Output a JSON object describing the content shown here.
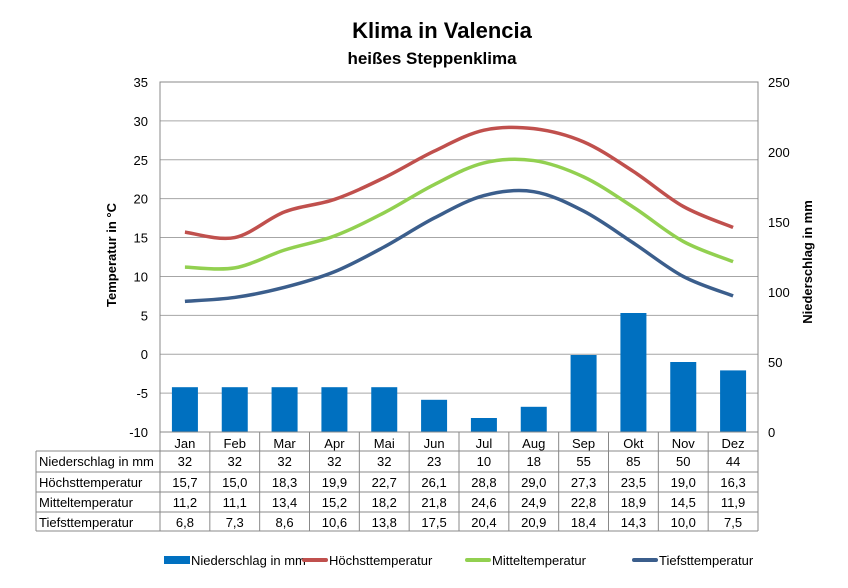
{
  "chart_data": {
    "type": "bar+line",
    "title": "Klima in Valencia",
    "subtitle": "heißes Steppenklima",
    "ylabel_left": "Temperatur in °C",
    "ylabel_right": "Niederschlag in mm",
    "ylim_left": [
      -10,
      35
    ],
    "yticks_left": [
      -10,
      -5,
      0,
      5,
      10,
      15,
      20,
      25,
      30,
      35
    ],
    "ylim_right": [
      0,
      250
    ],
    "yticks_right": [
      0,
      50,
      100,
      150,
      200,
      250
    ],
    "grid": true,
    "legend_placement": "bottom",
    "categories": [
      "Jan",
      "Feb",
      "Mar",
      "Apr",
      "Mai",
      "Jun",
      "Jul",
      "Aug",
      "Sep",
      "Okt",
      "Nov",
      "Dez"
    ],
    "series": [
      {
        "name": "Niederschlag in mm",
        "kind": "bar",
        "axis": "right",
        "color": "#0070C0",
        "values": [
          32,
          32,
          32,
          32,
          32,
          23,
          10,
          18,
          55,
          85,
          50,
          44
        ],
        "labels": [
          "32",
          "32",
          "32",
          "32",
          "32",
          "23",
          "10",
          "18",
          "55",
          "85",
          "50",
          "44"
        ]
      },
      {
        "name": "Höchsttemperatur",
        "kind": "line",
        "axis": "left",
        "color": "#C0504D",
        "values": [
          15.7,
          15.0,
          18.3,
          19.9,
          22.7,
          26.1,
          28.8,
          29.0,
          27.3,
          23.5,
          19.0,
          16.3
        ],
        "labels": [
          "15,7",
          "15,0",
          "18,3",
          "19,9",
          "22,7",
          "26,1",
          "28,8",
          "29,0",
          "27,3",
          "23,5",
          "19,0",
          "16,3"
        ]
      },
      {
        "name": "Mitteltemperatur",
        "kind": "line",
        "axis": "left",
        "color": "#92D050",
        "values": [
          11.2,
          11.1,
          13.4,
          15.2,
          18.2,
          21.8,
          24.6,
          24.9,
          22.8,
          18.9,
          14.5,
          11.9
        ],
        "labels": [
          "11,2",
          "11,1",
          "13,4",
          "15,2",
          "18,2",
          "21,8",
          "24,6",
          "24,9",
          "22,8",
          "18,9",
          "14,5",
          "11,9"
        ]
      },
      {
        "name": "Tiefsttemperatur",
        "kind": "line",
        "axis": "left",
        "color": "#3B5E8C",
        "values": [
          6.8,
          7.3,
          8.6,
          10.6,
          13.8,
          17.5,
          20.4,
          20.9,
          18.4,
          14.3,
          10.0,
          7.5
        ],
        "labels": [
          "6,8",
          "7,3",
          "8,6",
          "10,6",
          "13,8",
          "17,5",
          "20,4",
          "20,9",
          "18,4",
          "14,3",
          "10,0",
          "7,5"
        ]
      }
    ]
  }
}
